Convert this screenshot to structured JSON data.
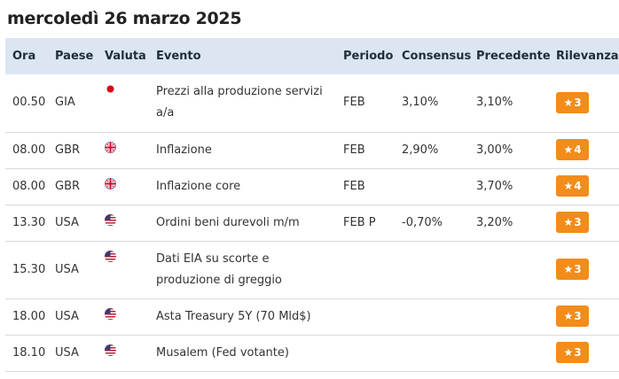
{
  "page": {
    "date_title": "mercoledì 26 marzo 2025"
  },
  "table": {
    "headers": {
      "ora": "Ora",
      "paese": "Paese",
      "valuta": "Valuta",
      "evento": "Evento",
      "periodo": "Periodo",
      "consensus": "Consensus",
      "precedente": "Precedente",
      "rilevanza": "Rilevanza"
    },
    "rows": [
      {
        "ora": "00.50",
        "paese": "GIA",
        "flag": "japan-flag-icon",
        "evento": "Prezzi alla produzione servizi a/a",
        "periodo": "FEB",
        "consensus": "3,10%",
        "precedente": "3,10%",
        "rilevanza": "3"
      },
      {
        "ora": "08.00",
        "paese": "GBR",
        "flag": "uk-flag-icon",
        "evento": "Inflazione",
        "periodo": "FEB",
        "consensus": "2,90%",
        "precedente": "3,00%",
        "rilevanza": "4"
      },
      {
        "ora": "08.00",
        "paese": "GBR",
        "flag": "uk-flag-icon",
        "evento": "Inflazione core",
        "periodo": "FEB",
        "consensus": "",
        "precedente": "3,70%",
        "rilevanza": "4"
      },
      {
        "ora": "13.30",
        "paese": "USA",
        "flag": "us-flag-icon",
        "evento": "Ordini beni durevoli m/m",
        "periodo": "FEB P",
        "consensus": "-0,70%",
        "precedente": "3,20%",
        "rilevanza": "3"
      },
      {
        "ora": "15.30",
        "paese": "USA",
        "flag": "us-flag-icon",
        "evento": "Dati EIA su scorte e produzione di greggio",
        "periodo": "",
        "consensus": "",
        "precedente": "",
        "rilevanza": "3"
      },
      {
        "ora": "18.00",
        "paese": "USA",
        "flag": "us-flag-icon",
        "evento": "Asta Treasury 5Y (70 Mld$)",
        "periodo": "",
        "consensus": "",
        "precedente": "",
        "rilevanza": "3"
      },
      {
        "ora": "18.10",
        "paese": "USA",
        "flag": "us-flag-icon",
        "evento": "Musalem (Fed votante)",
        "periodo": "",
        "consensus": "",
        "precedente": "",
        "rilevanza": "3"
      }
    ]
  },
  "colors": {
    "header_bg": "#dce6f2",
    "badge": "#f28c1a",
    "row_border": "#d9d9d9"
  },
  "icons": {
    "badge_icon": "star-icon"
  }
}
